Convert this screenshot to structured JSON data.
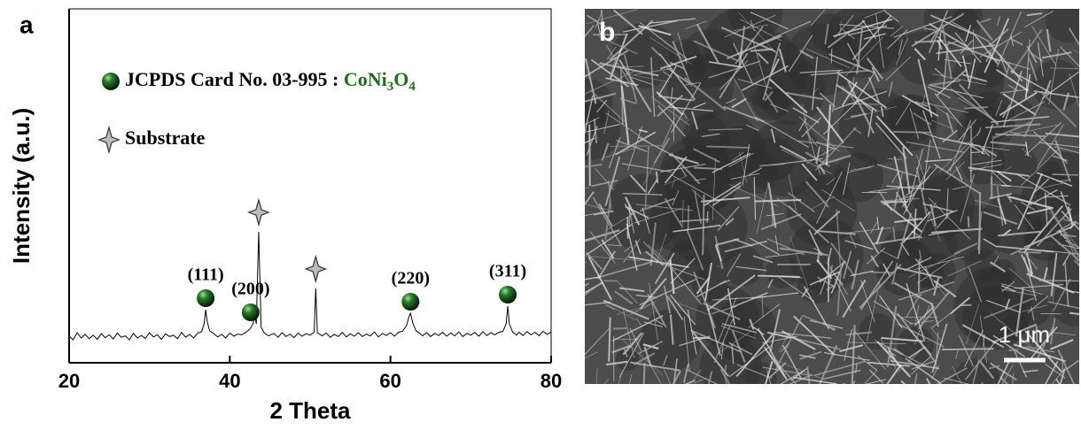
{
  "panel_labels": [
    "a",
    "b"
  ],
  "chart_data": {
    "type": "line",
    "xlabel": "2 Theta",
    "ylabel": "Intensity (a.u.)",
    "xlim": [
      20,
      80
    ],
    "xticks": [
      20,
      40,
      60,
      80
    ],
    "ylim": [
      0,
      100
    ],
    "series": [
      {
        "color": "#000000",
        "x": [
          20,
          20.5,
          21,
          21.5,
          22,
          22.5,
          23,
          23.5,
          24,
          24.5,
          25,
          25.5,
          26,
          26.5,
          27,
          27.5,
          28,
          28.5,
          29,
          29.5,
          30,
          30.5,
          31,
          31.5,
          32,
          32.5,
          33,
          33.5,
          34,
          34.5,
          35,
          35.5,
          36,
          36.5,
          36.8,
          37,
          37.2,
          37.5,
          38,
          38.5,
          39,
          39.5,
          40,
          40.5,
          41,
          41.5,
          42,
          42.5,
          42.9,
          43.1,
          43.3,
          43.6,
          43.9,
          44.3,
          44.8,
          45.5,
          46,
          46.5,
          47,
          47.5,
          48,
          48.5,
          49,
          49.5,
          50,
          50.5,
          50.7,
          50.9,
          51.5,
          52,
          52.5,
          53,
          53.5,
          54,
          54.5,
          55,
          55.5,
          56,
          56.5,
          57,
          57.5,
          58,
          58.5,
          59,
          59.5,
          60,
          60.5,
          61,
          61.5,
          62,
          62.3,
          62.5,
          62.8,
          63.2,
          63.7,
          64,
          64.5,
          65,
          65.5,
          66,
          66.5,
          67,
          67.5,
          68,
          68.5,
          69,
          69.5,
          70,
          70.5,
          71,
          71.5,
          72,
          72.5,
          73,
          73.5,
          74,
          74.4,
          74.6,
          74.8,
          75.2,
          75.7,
          76,
          76.5,
          77,
          77.5,
          78,
          78.5,
          79,
          79.5,
          80
        ],
        "values": [
          7.5,
          6.5,
          8.5,
          7,
          8,
          6.8,
          7.8,
          6.6,
          8.2,
          7.1,
          7.9,
          6.7,
          8.4,
          7.2,
          7.6,
          6.5,
          8.3,
          7,
          7.7,
          6.9,
          8.5,
          7.3,
          7.9,
          6.6,
          8.2,
          7.4,
          7.8,
          6.8,
          8.6,
          7.2,
          8,
          7,
          8.4,
          8.8,
          11,
          15,
          11.5,
          9,
          8.2,
          7.3,
          8,
          7,
          8.4,
          7.5,
          8.1,
          7.9,
          8.6,
          9.5,
          11,
          13.5,
          11,
          37,
          10,
          8.4,
          7.6,
          8.3,
          7.2,
          8.5,
          7.4,
          8.1,
          7.1,
          8.4,
          7.5,
          8.2,
          7.8,
          8.6,
          21,
          8.5,
          7.6,
          8.4,
          7.2,
          8,
          7.4,
          8.6,
          7.3,
          8.2,
          7.5,
          8.5,
          7.4,
          8.1,
          7.6,
          8.7,
          7.3,
          8.3,
          7.7,
          8.5,
          7.5,
          8.6,
          8.9,
          10.5,
          13,
          14,
          11,
          9,
          8.2,
          7.6,
          8.5,
          7.4,
          8.3,
          7.7,
          8.6,
          7.5,
          8.4,
          7.6,
          8.7,
          7.4,
          8.3,
          7.8,
          8.6,
          7.5,
          8.8,
          7.7,
          8.5,
          7.9,
          8.6,
          8.9,
          11,
          16,
          11,
          8.7,
          7.8,
          8.6,
          7.7,
          8.8,
          7.9,
          8.6,
          7.6,
          8.9,
          8,
          8.7
        ]
      }
    ],
    "annotations": [
      {
        "x": 37,
        "label": "(111)",
        "marker": "sphere"
      },
      {
        "x": 42.6,
        "label": "(200)",
        "marker": "sphere"
      },
      {
        "x": 43.6,
        "marker": "star"
      },
      {
        "x": 50.7,
        "marker": "star"
      },
      {
        "x": 62.5,
        "label": "(220)",
        "marker": "sphere"
      },
      {
        "x": 74.6,
        "label": "(311)",
        "marker": "sphere"
      }
    ],
    "legend": [
      {
        "label": "JCPDS Card No. 03-995  : ",
        "formula": [
          "CoNi",
          "3",
          "O",
          "4"
        ],
        "formula_color": "#1e6e1e",
        "marker": "sphere"
      },
      {
        "label": "Substrate",
        "marker": "star"
      }
    ]
  },
  "image": {
    "scale_bar": "1 μm"
  }
}
